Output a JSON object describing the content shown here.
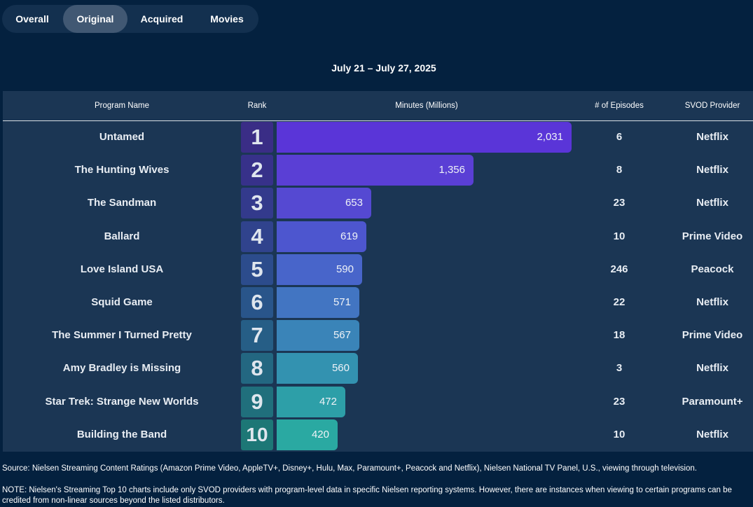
{
  "tabs": [
    {
      "label": "Overall",
      "active": false
    },
    {
      "label": "Original",
      "active": true
    },
    {
      "label": "Acquired",
      "active": false
    },
    {
      "label": "Movies",
      "active": false
    }
  ],
  "date_range": "July 21 – July 27, 2025",
  "headers": {
    "program": "Program Name",
    "rank": "Rank",
    "minutes": "Minutes (Millions)",
    "episodes": "# of Episodes",
    "provider": "SVOD Provider"
  },
  "chart_data": {
    "type": "bar",
    "orientation": "horizontal",
    "value_label": "Minutes (Millions)",
    "rows": [
      {
        "rank": "1",
        "program": "Untamed",
        "minutes": 2031,
        "minutes_label": "2,031",
        "episodes": "6",
        "provider": "Netflix",
        "rank_color": "#3a2d86",
        "bar_color": "#5a35d8"
      },
      {
        "rank": "2",
        "program": "The Hunting Wives",
        "minutes": 1356,
        "minutes_label": "1,356",
        "episodes": "8",
        "provider": "Netflix",
        "rank_color": "#37318a",
        "bar_color": "#5a3fd5"
      },
      {
        "rank": "3",
        "program": "The Sandman",
        "minutes": 653,
        "minutes_label": "653",
        "episodes": "23",
        "provider": "Netflix",
        "rank_color": "#333a8c",
        "bar_color": "#5549d2"
      },
      {
        "rank": "4",
        "program": "Ballard",
        "minutes": 619,
        "minutes_label": "619",
        "episodes": "10",
        "provider": "Prime Video",
        "rank_color": "#30438d",
        "bar_color": "#4d56cf"
      },
      {
        "rank": "5",
        "program": "Love Island USA",
        "minutes": 590,
        "minutes_label": "590",
        "episodes": "246",
        "provider": "Peacock",
        "rank_color": "#2c4c8c",
        "bar_color": "#4865ca"
      },
      {
        "rank": "6",
        "program": "Squid Game",
        "minutes": 571,
        "minutes_label": "571",
        "episodes": "22",
        "provider": "Netflix",
        "rank_color": "#29558a",
        "bar_color": "#4275c2"
      },
      {
        "rank": "7",
        "program": "The Summer I Turned Pretty",
        "minutes": 567,
        "minutes_label": "567",
        "episodes": "18",
        "provider": "Prime Video",
        "rank_color": "#265e86",
        "bar_color": "#3a84b8"
      },
      {
        "rank": "8",
        "program": "Amy Bradley is Missing",
        "minutes": 560,
        "minutes_label": "560",
        "episodes": "3",
        "provider": "Netflix",
        "rank_color": "#236781",
        "bar_color": "#3392b0"
      },
      {
        "rank": "9",
        "program": "Star Trek: Strange New Worlds",
        "minutes": 472,
        "minutes_label": "472",
        "episodes": "23",
        "provider": "Paramount+",
        "rank_color": "#206f7c",
        "bar_color": "#2d9fa8"
      },
      {
        "rank": "10",
        "program": "Building the Band",
        "minutes": 420,
        "minutes_label": "420",
        "episodes": "10",
        "provider": "Netflix",
        "rank_color": "#1d7776",
        "bar_color": "#2aa9a2"
      }
    ]
  },
  "footer": {
    "source": "Source: Nielsen Streaming Content Ratings (Amazon Prime Video, AppleTV+, Disney+, Hulu, Max, Paramount+, Peacock and Netflix), Nielsen National TV Panel, U.S., viewing through television.",
    "note": "NOTE: Nielsen's Streaming Top 10 charts include only SVOD providers with program-level data in specific Nielsen reporting systems. However, there are instances when viewing to certain programs can be credited from non-linear sources beyond the listed distributors."
  }
}
